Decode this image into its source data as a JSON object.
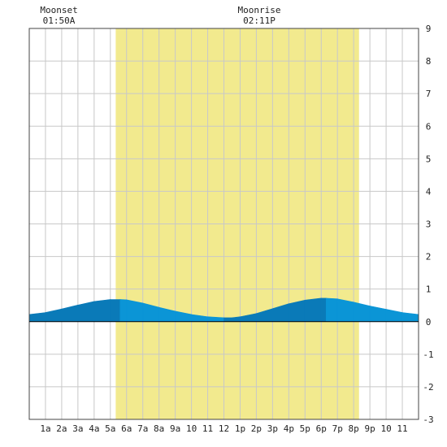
{
  "chart_data": {
    "type": "area",
    "x_tick_labels": [
      "1a",
      "2a",
      "3a",
      "4a",
      "5a",
      "6a",
      "7a",
      "8a",
      "9a",
      "10",
      "11",
      "12",
      "1p",
      "2p",
      "3p",
      "4p",
      "5p",
      "6p",
      "7p",
      "8p",
      "9p",
      "10",
      "11"
    ],
    "y_ticks": [
      -3,
      -2,
      -1,
      0,
      1,
      2,
      3,
      4,
      5,
      6,
      7,
      8,
      9
    ],
    "xlim": [
      0,
      24
    ],
    "ylim": [
      -3,
      9
    ],
    "grid": true,
    "daylight": {
      "start_hour": 5.33,
      "end_hour": 20.33
    },
    "moon_events": [
      {
        "label": "Moonset",
        "time": "01:50A",
        "hour": 1.83
      },
      {
        "label": "Moonrise",
        "time": "02:11P",
        "hour": 14.18
      }
    ],
    "series": [
      {
        "x": [
          0,
          1,
          2,
          3,
          4,
          5,
          5.6,
          6,
          7,
          8,
          9,
          10,
          11,
          12,
          12.5,
          13,
          14,
          15,
          16,
          17,
          18,
          18.3,
          19,
          20,
          21,
          22,
          23,
          24
        ],
        "values": [
          0.22,
          0.28,
          0.39,
          0.51,
          0.62,
          0.68,
          0.68,
          0.67,
          0.57,
          0.44,
          0.32,
          0.22,
          0.15,
          0.12,
          0.12,
          0.15,
          0.25,
          0.4,
          0.55,
          0.66,
          0.72,
          0.72,
          0.7,
          0.6,
          0.48,
          0.38,
          0.28,
          0.22
        ]
      }
    ],
    "colors": {
      "daylight": "#f2ea8e",
      "tide_rising": "#0a7ab8",
      "tide_falling": "#0b95d6",
      "grid": "#c8c8c8",
      "axis": "#000000"
    }
  }
}
